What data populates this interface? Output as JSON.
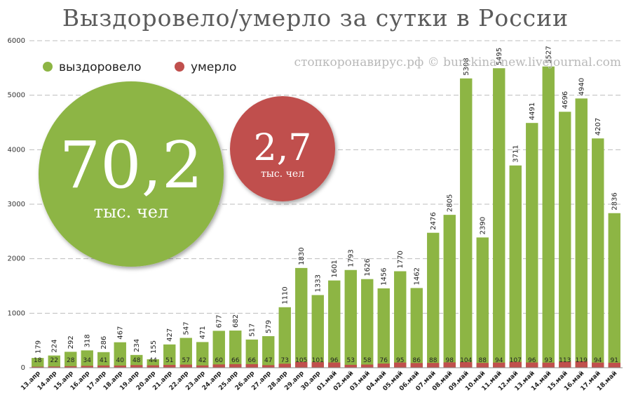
{
  "chart_data": {
    "type": "bar",
    "title": "Выздоровело/умерло за сутки в России",
    "watermark": "стопкоронавирус.рф © burckina-new.livejournal.com",
    "categories": [
      "13.апр",
      "14.апр",
      "15.апр",
      "16.апр",
      "17.апр",
      "18.апр",
      "19.апр",
      "20.апр",
      "21.апр",
      "22.апр",
      "23.апр",
      "24.апр",
      "25.апр",
      "26.апр",
      "27.апр",
      "28.апр",
      "29.апр",
      "30.апр",
      "01.май",
      "02.май",
      "03.май",
      "04.май",
      "05.май",
      "06.май",
      "07.май",
      "08.май",
      "09.май",
      "10.май",
      "11.май",
      "12.май",
      "13.май",
      "14.май",
      "15.май",
      "16.май",
      "17.май",
      "18.май"
    ],
    "series": [
      {
        "name": "выздоровело",
        "color": "#8db544",
        "values": [
          179,
          224,
          292,
          318,
          286,
          467,
          234,
          155,
          427,
          547,
          471,
          677,
          682,
          517,
          579,
          1110,
          1830,
          1333,
          1601,
          1793,
          1626,
          1456,
          1770,
          1462,
          2476,
          2805,
          5308,
          2390,
          5495,
          3711,
          4491,
          5527,
          4696,
          4940,
          4207,
          2836
        ]
      },
      {
        "name": "умерло",
        "color": "#c0504d",
        "values": [
          18,
          22,
          28,
          34,
          41,
          40,
          48,
          44,
          51,
          57,
          42,
          60,
          66,
          66,
          47,
          73,
          105,
          101,
          96,
          53,
          58,
          76,
          95,
          86,
          88,
          98,
          104,
          88,
          94,
          107,
          96,
          93,
          113,
          119,
          94,
          91
        ]
      }
    ],
    "ylim": [
      0,
      6000
    ],
    "yticks": [
      0,
      1000,
      2000,
      3000,
      4000,
      5000,
      6000
    ],
    "grid": true,
    "legend_position": "top-left",
    "totals": [
      {
        "value": "70,2",
        "unit": "тыс. чел",
        "color": "#8db544"
      },
      {
        "value": "2,7",
        "unit": "тыс. чел",
        "color": "#c0504d"
      }
    ]
  }
}
